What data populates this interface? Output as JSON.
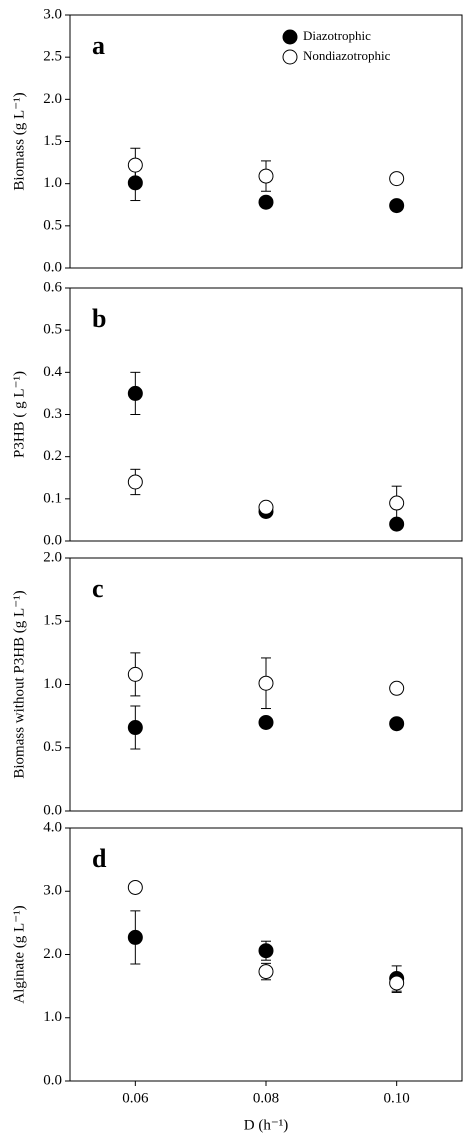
{
  "chart_data": [
    {
      "type": "scatter",
      "panel_label": "a",
      "ylabel": "Biomass (g L⁻¹)",
      "x": [
        0.06,
        0.08,
        0.1
      ],
      "xlim": [
        0.05,
        0.11
      ],
      "ylim": [
        0,
        3
      ],
      "yticks": [
        {
          "value": 0,
          "label": "0.0"
        },
        {
          "value": 0.5,
          "label": "0.5"
        },
        {
          "value": 1,
          "label": "1.0"
        },
        {
          "value": 1.5,
          "label": "1.5"
        },
        {
          "value": 2,
          "label": "2.0"
        },
        {
          "value": 2.5,
          "label": "2.5"
        },
        {
          "value": 3,
          "label": "3.0"
        }
      ],
      "legend": "upper right",
      "series": [
        {
          "name": "Diazotrophic",
          "color": "#000000",
          "values": [
            1.01,
            0.78,
            0.74
          ],
          "errors": [
            0.21,
            null,
            null
          ]
        },
        {
          "name": "Nondiazotrophic",
          "color": "#ffffff",
          "values": [
            1.22,
            1.09,
            1.06
          ],
          "errors": [
            0.2,
            0.18,
            null
          ]
        }
      ]
    },
    {
      "type": "scatter",
      "panel_label": "b",
      "ylabel": "P3HB ( g L⁻¹)",
      "x": [
        0.06,
        0.08,
        0.1
      ],
      "xlim": [
        0.05,
        0.11
      ],
      "ylim": [
        0,
        0.6
      ],
      "yticks": [
        {
          "value": 0,
          "label": "0.0"
        },
        0.1,
        0.2,
        0.3,
        0.4,
        0.5,
        0.6
      ],
      "series": [
        {
          "color": "#000000",
          "values": [
            0.35,
            0.07,
            0.04
          ],
          "errors": [
            0.05,
            null,
            null
          ]
        },
        {
          "color": "#ffffff",
          "values": [
            0.14,
            0.08,
            0.09
          ],
          "errors": [
            0.03,
            null,
            0.04
          ]
        }
      ]
    },
    {
      "type": "scatter",
      "panel_label": "c",
      "ylabel": "Biomass without P3HB (g L⁻¹)",
      "x": [
        0.06,
        0.08,
        0.1
      ],
      "xlim": [
        0.05,
        0.11
      ],
      "ylim": [
        0,
        2
      ],
      "yticks": [
        {
          "value": 0,
          "label": "0.0"
        },
        {
          "value": 0.5,
          "label": "0.5"
        },
        {
          "value": 1,
          "label": "1.0"
        },
        {
          "value": 1.5,
          "label": "1.5"
        },
        {
          "value": 2,
          "label": "2.0"
        }
      ],
      "series": [
        {
          "color": "#000000",
          "values": [
            0.66,
            0.7,
            0.69
          ],
          "errors": [
            0.17,
            0.04,
            null
          ]
        },
        {
          "color": "#ffffff",
          "values": [
            1.08,
            1.01,
            0.97
          ],
          "errors": [
            0.17,
            0.2,
            null
          ]
        }
      ]
    },
    {
      "type": "scatter",
      "panel_label": "d",
      "ylabel": "Alginate (g L⁻¹)",
      "xlabel": "D (h⁻¹)",
      "x": [
        0.06,
        0.08,
        0.1
      ],
      "xlim": [
        0.05,
        0.11
      ],
      "xticks": [
        0.06,
        0.08,
        {
          "value": 0.1,
          "label": "0.10"
        }
      ],
      "ylim": [
        0,
        4
      ],
      "yticks": [
        {
          "value": 0,
          "label": "0.0"
        },
        {
          "value": 1,
          "label": "1.0"
        },
        {
          "value": 2,
          "label": "2.0"
        },
        {
          "value": 3,
          "label": "3.0"
        },
        {
          "value": 4,
          "label": "4.0"
        }
      ],
      "series": [
        {
          "color": "#000000",
          "values": [
            2.27,
            2.06,
            1.62
          ],
          "errors": [
            0.42,
            0.15,
            0.2
          ]
        },
        {
          "color": "#ffffff",
          "values": [
            3.06,
            1.73,
            1.55
          ],
          "errors": [
            null,
            0.13,
            0.15
          ]
        }
      ]
    }
  ]
}
